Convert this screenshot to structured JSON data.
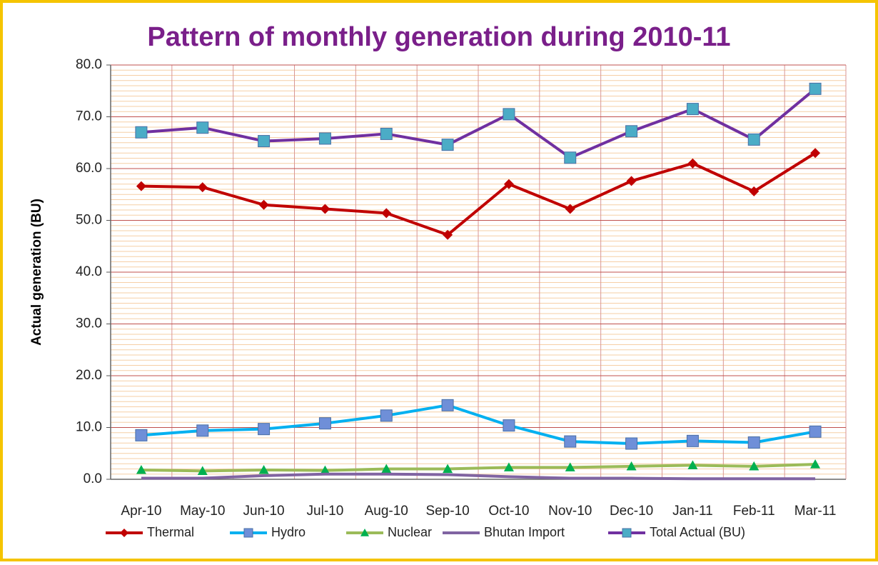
{
  "chart_data": {
    "type": "line",
    "title": "Pattern of monthly generation during 2010-11",
    "y_label": "Actual generation (BU)",
    "categories": [
      "Apr-10",
      "May-10",
      "Jun-10",
      "Jul-10",
      "Aug-10",
      "Sep-10",
      "Oct-10",
      "Nov-10",
      "Dec-10",
      "Jan-11",
      "Feb-11",
      "Mar-11"
    ],
    "series": [
      {
        "name": "Thermal",
        "color": "#c00000",
        "marker": "diamond",
        "marker_color": "#c00000",
        "values": [
          56.6,
          56.4,
          53.0,
          52.2,
          51.4,
          47.2,
          57.0,
          52.2,
          57.6,
          61.0,
          55.6,
          63.0
        ]
      },
      {
        "name": "Hydro",
        "color": "#00b0f0",
        "marker": "square",
        "marker_color": "#6f8fd8",
        "values": [
          8.5,
          9.4,
          9.7,
          10.8,
          12.3,
          14.3,
          10.4,
          7.3,
          6.9,
          7.4,
          7.1,
          9.2
        ]
      },
      {
        "name": "Nuclear",
        "color": "#9bbb59",
        "marker": "triangle",
        "marker_color": "#00b050",
        "values": [
          1.8,
          1.6,
          1.8,
          1.7,
          2.0,
          2.0,
          2.3,
          2.3,
          2.5,
          2.7,
          2.5,
          2.9
        ]
      },
      {
        "name": "Bhutan Import",
        "color": "#8064a2",
        "marker": "none",
        "marker_color": "#8064a2",
        "values": [
          0.2,
          0.2,
          0.7,
          1.0,
          1.0,
          0.9,
          0.5,
          0.2,
          0.2,
          0.1,
          0.1,
          0.1
        ]
      },
      {
        "name": "Total Actual (BU)",
        "color": "#7030a0",
        "marker": "square",
        "marker_color": "#4bacc6",
        "values": [
          67.0,
          67.9,
          65.3,
          65.8,
          66.7,
          64.6,
          70.5,
          62.1,
          67.2,
          71.5,
          65.6,
          75.4
        ]
      }
    ],
    "ylim": [
      0,
      80
    ],
    "yticks": [
      {
        "value": 0,
        "label": "0.0"
      },
      {
        "value": 10,
        "label": "10.0"
      },
      {
        "value": 20,
        "label": "20.0"
      },
      {
        "value": 30,
        "label": "30.0"
      },
      {
        "value": 40,
        "label": "40.0"
      },
      {
        "value": 50,
        "label": "50.0"
      },
      {
        "value": 60,
        "label": "60.0"
      },
      {
        "value": 70,
        "label": "70.0"
      },
      {
        "value": 80,
        "label": "80.0"
      }
    ],
    "grid": true,
    "minor_grid_step": 1,
    "legend": "bottom"
  }
}
